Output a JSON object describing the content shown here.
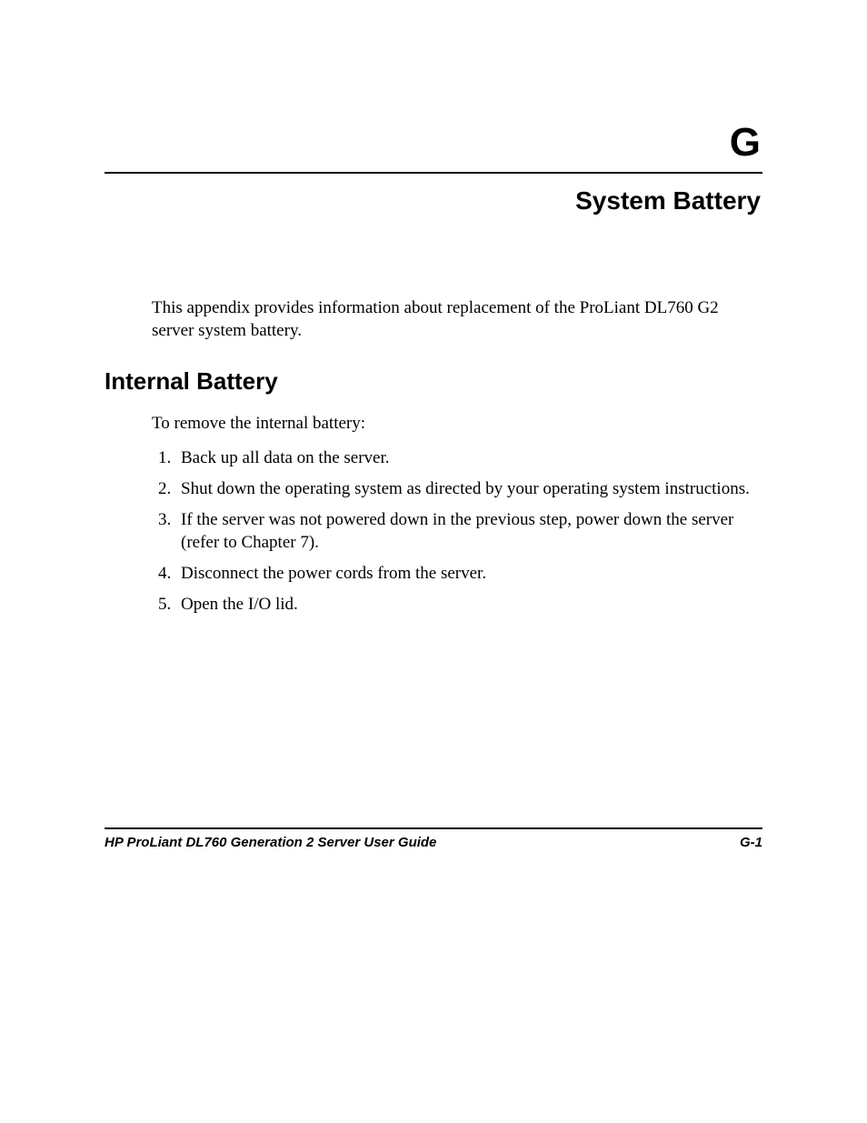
{
  "appendix_letter": "G",
  "chapter_title": "System Battery",
  "intro_text": "This appendix provides information about replacement of the ProLiant DL760 G2 server system battery.",
  "section_heading": "Internal Battery",
  "lead_text": "To remove the internal battery:",
  "steps": [
    "Back up all data on the server.",
    "Shut down the operating system as directed by your operating system instructions.",
    "If the server was not powered down in the previous step, power down the server (refer to Chapter 7).",
    "Disconnect the power cords from the server.",
    "Open the I/O lid."
  ],
  "footer": {
    "guide_title": "HP ProLiant DL760 Generation 2 Server User Guide",
    "page_number": "G-1"
  },
  "colors": {
    "text": "#000000",
    "background": "#ffffff",
    "rule": "#000000"
  },
  "typography": {
    "body_font": "Times New Roman",
    "heading_font": "Arial",
    "appendix_letter_size_pt": 33,
    "chapter_title_size_pt": 21,
    "section_heading_size_pt": 20,
    "body_size_pt": 14,
    "footer_size_pt": 11
  }
}
